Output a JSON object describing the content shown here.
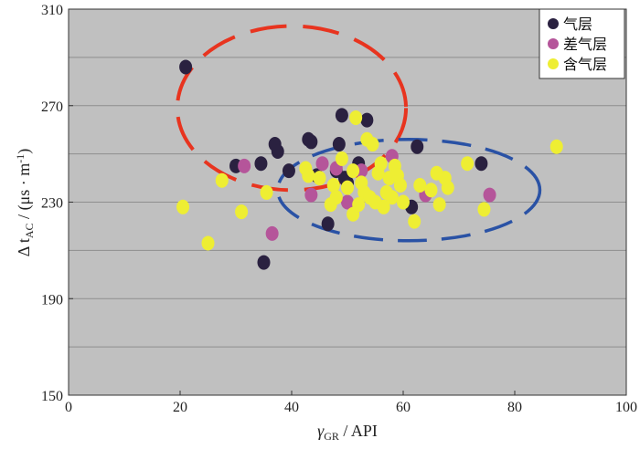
{
  "chart_data": {
    "type": "scatter",
    "title": "",
    "xlabel": {
      "symbol": "γ",
      "sub": "GR",
      "rest": " / API"
    },
    "ylabel": {
      "symbol": "Δ t",
      "sub": "AC",
      "rest": " / (μs · m",
      "sup": "-1",
      "close": ")"
    },
    "xlim": [
      0,
      100
    ],
    "ylim": [
      150,
      310
    ],
    "xticks": [
      "0",
      "20",
      "40",
      "60",
      "80",
      "100"
    ],
    "yticks": [
      "150",
      "190",
      "230",
      "270",
      "310"
    ],
    "grid": true,
    "legend_position": "top-right",
    "series": [
      {
        "name": "气层",
        "color": "#2a2140",
        "points": [
          [
            21,
            286
          ],
          [
            30,
            245
          ],
          [
            34.5,
            246
          ],
          [
            35,
            205
          ],
          [
            37,
            254
          ],
          [
            37.5,
            251
          ],
          [
            39.5,
            243
          ],
          [
            43,
            256
          ],
          [
            43.5,
            255
          ],
          [
            44.5,
            241
          ],
          [
            46.5,
            221
          ],
          [
            48,
            243
          ],
          [
            48.5,
            254
          ],
          [
            49,
            266
          ],
          [
            49.5,
            240
          ],
          [
            50,
            238
          ],
          [
            52,
            246
          ],
          [
            53.5,
            264
          ],
          [
            61.5,
            228
          ],
          [
            62.5,
            253
          ],
          [
            74,
            246
          ]
        ]
      },
      {
        "name": "差气层",
        "color": "#b5559a",
        "points": [
          [
            31.5,
            245
          ],
          [
            36.5,
            217
          ],
          [
            43.5,
            233
          ],
          [
            45.5,
            246
          ],
          [
            48,
            244
          ],
          [
            50,
            230
          ],
          [
            52.5,
            243
          ],
          [
            58,
            249
          ],
          [
            64,
            233
          ],
          [
            75.5,
            233
          ]
        ]
      },
      {
        "name": "含气层",
        "color": "#eeee33",
        "points": [
          [
            20.5,
            228
          ],
          [
            25,
            213
          ],
          [
            27.5,
            239
          ],
          [
            31,
            226
          ],
          [
            35.5,
            234
          ],
          [
            42.5,
            244
          ],
          [
            43,
            241
          ],
          [
            45,
            240
          ],
          [
            47,
            229
          ],
          [
            47.5,
            237
          ],
          [
            48,
            232
          ],
          [
            49,
            248
          ],
          [
            50,
            236
          ],
          [
            51,
            225
          ],
          [
            51,
            243
          ],
          [
            51.5,
            265
          ],
          [
            52,
            229
          ],
          [
            52.5,
            238
          ],
          [
            53,
            234
          ],
          [
            53.5,
            256
          ],
          [
            54,
            232
          ],
          [
            54.5,
            254
          ],
          [
            55,
            230
          ],
          [
            55.5,
            242
          ],
          [
            56,
            246
          ],
          [
            56.5,
            228
          ],
          [
            57,
            234
          ],
          [
            57.5,
            240
          ],
          [
            58,
            232
          ],
          [
            58.5,
            245
          ],
          [
            59,
            241
          ],
          [
            59.5,
            237
          ],
          [
            60,
            230
          ],
          [
            62,
            222
          ],
          [
            63,
            237
          ],
          [
            65,
            235
          ],
          [
            66,
            242
          ],
          [
            66.5,
            229
          ],
          [
            67.5,
            240
          ],
          [
            68,
            236
          ],
          [
            71.5,
            246
          ],
          [
            74.5,
            227
          ],
          [
            87.5,
            253
          ]
        ]
      }
    ],
    "annotations": [
      {
        "shape": "dashed-ellipse",
        "color": "#e8341f",
        "cx": 40,
        "cy": 269,
        "rx": 20.5,
        "ry": 34
      },
      {
        "shape": "dashed-ellipse",
        "color": "#2a52a5",
        "cx": 61,
        "cy": 235,
        "rx": 23.5,
        "ry": 21
      }
    ]
  }
}
